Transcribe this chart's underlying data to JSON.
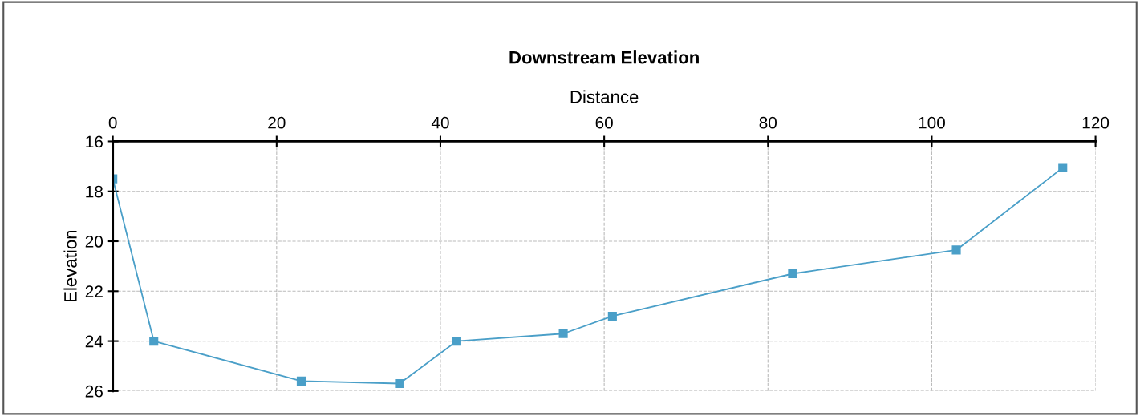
{
  "chart_data": {
    "type": "line",
    "title": "Downstream Elevation",
    "xlabel": "Distance",
    "ylabel": "Elevation",
    "x": [
      0,
      5,
      23,
      35,
      42,
      55,
      61,
      83,
      103,
      116
    ],
    "series": [
      {
        "color": "#4a9fc8",
        "values": [
          17.5,
          24.0,
          25.6,
          25.7,
          24.0,
          23.7,
          23.0,
          21.3,
          20.35,
          17.05
        ]
      }
    ],
    "xlim": [
      0,
      120
    ],
    "xticks": [
      0,
      20,
      40,
      60,
      80,
      100,
      120
    ],
    "ylim": [
      26,
      16
    ],
    "yticks": [
      16,
      18,
      20,
      22,
      24,
      26
    ],
    "grid": true,
    "marker": "square",
    "line_style": "solid"
  }
}
